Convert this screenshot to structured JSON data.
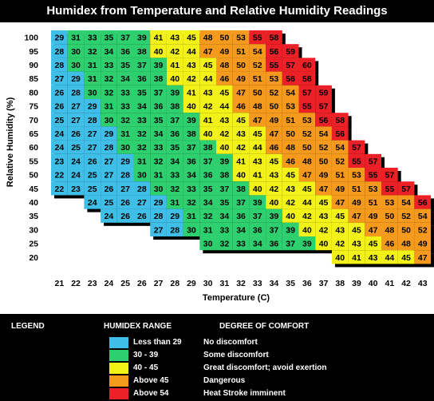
{
  "title": "Humidex from Temperature and Relative Humidity Readings",
  "chart_data": {
    "type": "heatmap",
    "title": "Humidex from Temperature and Relative Humidity Readings",
    "xlabel": "Temperature (C)",
    "ylabel": "Relative Humidity (%)",
    "x": [
      21,
      22,
      23,
      24,
      25,
      26,
      27,
      28,
      29,
      30,
      31,
      32,
      33,
      34,
      35,
      36,
      37,
      38,
      39,
      40,
      41,
      42,
      43
    ],
    "y": [
      100,
      95,
      90,
      85,
      80,
      75,
      70,
      65,
      60,
      55,
      50,
      45,
      40,
      35,
      30,
      25,
      20
    ],
    "rows": [
      {
        "rh": 100,
        "start": 0,
        "values": [
          29,
          31,
          33,
          35,
          37,
          39,
          41,
          43,
          45,
          48,
          50,
          53,
          55,
          58
        ]
      },
      {
        "rh": 95,
        "start": 0,
        "values": [
          28,
          30,
          32,
          34,
          36,
          38,
          40,
          42,
          44,
          47,
          49,
          51,
          54,
          56,
          59
        ]
      },
      {
        "rh": 90,
        "start": 0,
        "values": [
          28,
          30,
          31,
          33,
          35,
          37,
          39,
          41,
          43,
          45,
          48,
          50,
          52,
          55,
          57,
          60
        ]
      },
      {
        "rh": 85,
        "start": 0,
        "values": [
          27,
          29,
          31,
          32,
          34,
          36,
          38,
          40,
          42,
          44,
          46,
          49,
          51,
          53,
          56,
          58
        ]
      },
      {
        "rh": 80,
        "start": 0,
        "values": [
          26,
          28,
          30,
          32,
          33,
          35,
          37,
          39,
          41,
          43,
          45,
          47,
          50,
          52,
          54,
          57,
          59
        ]
      },
      {
        "rh": 75,
        "start": 0,
        "values": [
          26,
          27,
          29,
          31,
          33,
          34,
          36,
          38,
          40,
          42,
          44,
          46,
          48,
          50,
          53,
          55,
          57
        ]
      },
      {
        "rh": 70,
        "start": 0,
        "values": [
          25,
          27,
          28,
          30,
          32,
          33,
          35,
          37,
          39,
          41,
          43,
          45,
          47,
          49,
          51,
          53,
          56,
          58
        ]
      },
      {
        "rh": 65,
        "start": 0,
        "values": [
          24,
          26,
          27,
          29,
          31,
          32,
          34,
          36,
          38,
          40,
          42,
          43,
          45,
          47,
          50,
          52,
          54,
          56
        ]
      },
      {
        "rh": 60,
        "start": 0,
        "values": [
          24,
          25,
          27,
          28,
          30,
          32,
          33,
          35,
          37,
          38,
          40,
          42,
          44,
          46,
          48,
          50,
          52,
          54,
          57
        ]
      },
      {
        "rh": 55,
        "start": 0,
        "values": [
          23,
          24,
          26,
          27,
          29,
          31,
          32,
          34,
          36,
          37,
          39,
          41,
          43,
          45,
          46,
          48,
          50,
          52,
          55,
          57
        ]
      },
      {
        "rh": 50,
        "start": 0,
        "values": [
          22,
          24,
          25,
          27,
          28,
          30,
          31,
          33,
          34,
          36,
          38,
          40,
          41,
          43,
          45,
          47,
          49,
          51,
          53,
          55,
          57
        ]
      },
      {
        "rh": 45,
        "start": 0,
        "values": [
          22,
          23,
          25,
          26,
          27,
          28,
          30,
          32,
          33,
          35,
          37,
          38,
          40,
          42,
          43,
          45,
          47,
          49,
          51,
          53,
          55,
          57
        ]
      },
      {
        "rh": 40,
        "start": 2,
        "values": [
          24,
          25,
          26,
          27,
          29,
          31,
          32,
          34,
          35,
          37,
          39,
          40,
          42,
          44,
          45,
          47,
          49,
          51,
          53,
          54,
          56
        ]
      },
      {
        "rh": 35,
        "start": 3,
        "values": [
          24,
          26,
          26,
          28,
          29,
          31,
          32,
          34,
          36,
          37,
          39,
          40,
          42,
          43,
          45,
          47,
          49,
          50,
          52,
          54
        ]
      },
      {
        "rh": 30,
        "start": 6,
        "values": [
          27,
          28,
          30,
          31,
          33,
          34,
          36,
          37,
          39,
          40,
          42,
          43,
          45,
          47,
          48,
          50,
          52
        ]
      },
      {
        "rh": 25,
        "start": 9,
        "values": [
          30,
          32,
          33,
          34,
          36,
          37,
          39,
          40,
          42,
          43,
          45,
          46,
          48,
          49
        ]
      },
      {
        "rh": 20,
        "start": 17,
        "values": [
          40,
          41,
          43,
          44,
          45,
          47
        ]
      }
    ],
    "legend": [
      {
        "range": "Less than 29",
        "comfort": "No discomfort",
        "color": "#3fbfe8"
      },
      {
        "range": "30 - 39",
        "comfort": "Some discomfort",
        "color": "#2ecf6e"
      },
      {
        "range": "40 - 45",
        "comfort": "Great discomfort; avoid exertion",
        "color": "#f2f218"
      },
      {
        "range": "Above 45",
        "comfort": "Dangerous",
        "color": "#f59a1c"
      },
      {
        "range": "Above 54",
        "comfort": "Heat Stroke imminent",
        "color": "#ec2127"
      }
    ]
  },
  "legend": {
    "heading": "LEGEND",
    "range_heading": "HUMIDEX RANGE",
    "comfort_heading": "DEGREE OF COMFORT"
  }
}
